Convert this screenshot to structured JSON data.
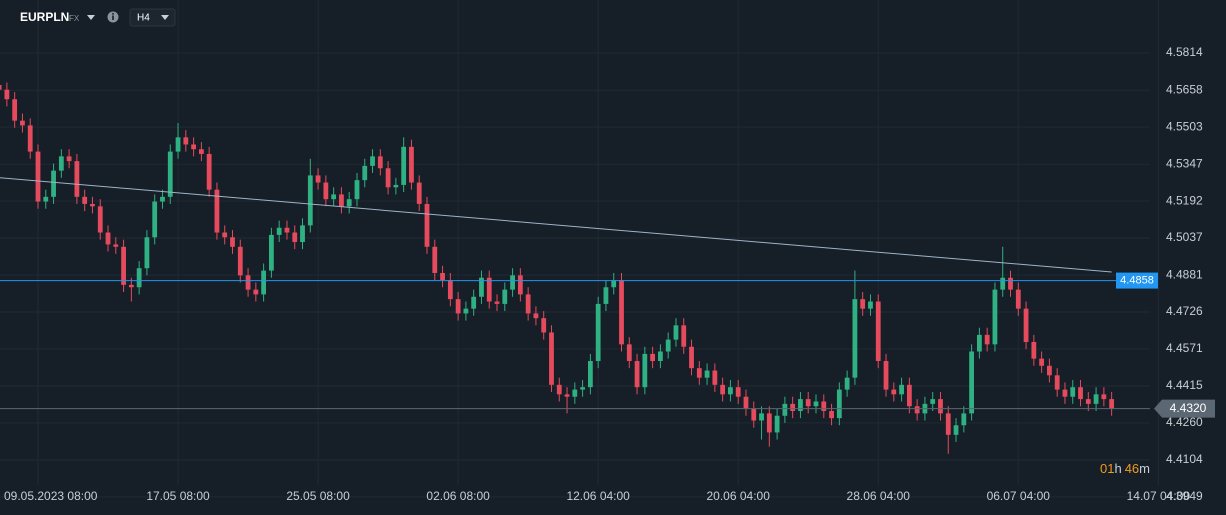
{
  "header": {
    "symbol": "EURPLN",
    "market": "FX",
    "timeframe": "H4"
  },
  "countdown": {
    "hours": "01",
    "hours_unit": "h",
    "minutes": "46",
    "minutes_unit": "m"
  },
  "chart_data": {
    "type": "candlestick",
    "up_color": "#2fb183",
    "down_color": "#e64a5d",
    "grid": true,
    "ylim": [
      4.3873,
      4.6037
    ],
    "yticks": [
      4.5814,
      4.5658,
      4.5503,
      4.5347,
      4.5192,
      4.5037,
      4.4881,
      4.4726,
      4.4571,
      4.4415,
      {
        "value": 4.426,
        "label": "4.4260"
      },
      4.4104,
      4.3949
    ],
    "categories": [
      null,
      null,
      null,
      null,
      null,
      "09.05.2023 08:00",
      null,
      null,
      null,
      null,
      null,
      null,
      null,
      null,
      null,
      null,
      null,
      null,
      null,
      null,
      null,
      null,
      null,
      "17.05 08:00",
      null,
      null,
      null,
      null,
      null,
      null,
      null,
      null,
      null,
      null,
      null,
      null,
      null,
      null,
      null,
      null,
      null,
      "25.05 08:00",
      null,
      null,
      null,
      null,
      null,
      null,
      null,
      null,
      null,
      null,
      null,
      null,
      null,
      null,
      null,
      null,
      null,
      "02.06 08:00",
      null,
      null,
      null,
      null,
      null,
      null,
      null,
      null,
      null,
      null,
      null,
      null,
      null,
      null,
      null,
      null,
      null,
      "12.06 04:00",
      null,
      null,
      null,
      null,
      null,
      null,
      null,
      null,
      null,
      null,
      null,
      null,
      null,
      null,
      null,
      null,
      null,
      "20.06 04:00",
      null,
      null,
      null,
      null,
      null,
      null,
      null,
      null,
      null,
      null,
      null,
      null,
      null,
      null,
      null,
      null,
      null,
      "28.06 04:00",
      null,
      null,
      null,
      null,
      null,
      null,
      null,
      null,
      null,
      null,
      null,
      null,
      null,
      null,
      null,
      null,
      null,
      "06.07 04:00",
      null,
      null,
      null,
      null,
      null,
      null,
      null,
      null,
      null,
      null,
      null,
      null,
      null,
      null,
      null,
      null,
      null,
      "14.07 04:00"
    ],
    "open": [
      4.568,
      4.566,
      4.562,
      4.553,
      4.551,
      4.54,
      4.519,
      4.521,
      4.532,
      4.538,
      4.536,
      4.521,
      4.518,
      4.517,
      4.506,
      4.501,
      4.5,
      4.484,
      4.483,
      4.491,
      4.504,
      4.519,
      4.521,
      4.54,
      4.546,
      4.543,
      4.541,
      4.539,
      4.524,
      4.506,
      4.504,
      4.5,
      4.488,
      4.482,
      4.48,
      4.49,
      4.505,
      4.508,
      4.506,
      4.502,
      4.509,
      4.53,
      4.527,
      4.52,
      4.522,
      4.517,
      4.52,
      4.528,
      4.534,
      4.538,
      4.533,
      4.525,
      4.526,
      4.542,
      4.527,
      4.518,
      4.5,
      4.489,
      4.486,
      4.478,
      4.472,
      4.474,
      4.479,
      4.487,
      4.477,
      4.476,
      4.482,
      4.488,
      4.48,
      4.472,
      4.47,
      4.464,
      4.442,
      4.438,
      4.437,
      4.44,
      4.441,
      4.452,
      4.476,
      4.483,
      4.486,
      4.459,
      4.452,
      4.441,
      4.455,
      4.452,
      4.456,
      4.461,
      4.467,
      4.458,
      4.449,
      4.445,
      4.448,
      4.442,
      4.438,
      4.441,
      4.437,
      4.432,
      4.427,
      4.43,
      4.422,
      4.429,
      4.434,
      4.431,
      4.436,
      4.433,
      4.435,
      4.431,
      4.428,
      4.44,
      4.445,
      4.478,
      4.474,
      4.477,
      4.452,
      4.44,
      4.438,
      4.442,
      4.433,
      4.43,
      4.434,
      4.436,
      4.43,
      4.421,
      4.425,
      4.43,
      4.456,
      4.463,
      4.459,
      4.482,
      4.487,
      4.482,
      4.474,
      4.46,
      4.453,
      4.45,
      4.446,
      4.44,
      4.437,
      4.441,
      4.436,
      4.434,
      4.438,
      4.436,
      null,
      null,
      null,
      null,
      null,
      null
    ],
    "high": [
      4.576,
      4.569,
      4.565,
      4.556,
      4.554,
      4.543,
      4.524,
      4.535,
      4.541,
      4.541,
      4.539,
      4.524,
      4.521,
      4.52,
      4.509,
      4.504,
      4.503,
      4.487,
      4.494,
      4.507,
      4.522,
      4.524,
      4.543,
      4.552,
      4.549,
      4.546,
      4.544,
      4.542,
      4.527,
      4.509,
      4.507,
      4.503,
      4.491,
      4.485,
      4.493,
      4.508,
      4.511,
      4.511,
      4.509,
      4.512,
      4.537,
      4.533,
      4.53,
      4.525,
      4.525,
      4.523,
      4.531,
      4.537,
      4.541,
      4.541,
      4.536,
      4.529,
      4.546,
      4.545,
      4.53,
      4.521,
      4.503,
      4.492,
      4.489,
      4.481,
      4.477,
      4.482,
      4.49,
      4.49,
      4.48,
      4.485,
      4.491,
      4.491,
      4.483,
      4.475,
      4.473,
      4.467,
      4.445,
      4.441,
      4.443,
      4.444,
      4.455,
      4.479,
      4.486,
      4.489,
      4.489,
      4.462,
      4.455,
      4.458,
      4.458,
      4.459,
      4.464,
      4.47,
      4.47,
      4.461,
      4.452,
      4.451,
      4.451,
      4.445,
      4.444,
      4.444,
      4.44,
      4.435,
      4.433,
      4.433,
      4.432,
      4.437,
      4.437,
      4.439,
      4.439,
      4.438,
      4.438,
      4.434,
      4.443,
      4.448,
      4.49,
      4.481,
      4.48,
      4.48,
      4.455,
      4.443,
      4.445,
      4.445,
      4.436,
      4.437,
      4.439,
      4.439,
      4.433,
      4.428,
      4.433,
      4.459,
      4.466,
      4.466,
      4.485,
      4.5,
      4.49,
      4.485,
      4.477,
      4.463,
      4.456,
      4.453,
      4.449,
      4.443,
      4.444,
      4.444,
      4.439,
      4.441,
      4.441,
      4.439,
      null,
      null,
      null,
      null,
      null,
      null
    ],
    "low": [
      4.563,
      4.559,
      4.55,
      4.548,
      4.537,
      4.516,
      4.516,
      4.518,
      4.529,
      4.533,
      4.518,
      4.515,
      4.514,
      4.503,
      4.498,
      4.497,
      4.481,
      4.477,
      4.48,
      4.488,
      4.501,
      4.516,
      4.518,
      4.537,
      4.54,
      4.538,
      4.536,
      4.521,
      4.503,
      4.501,
      4.497,
      4.485,
      4.479,
      4.477,
      4.477,
      4.487,
      4.502,
      4.503,
      4.499,
      4.499,
      4.506,
      4.524,
      4.517,
      4.517,
      4.514,
      4.514,
      4.517,
      4.525,
      4.531,
      4.53,
      4.522,
      4.522,
      4.523,
      4.524,
      4.515,
      4.497,
      4.486,
      4.483,
      4.475,
      4.469,
      4.469,
      4.471,
      4.476,
      4.474,
      4.473,
      4.473,
      4.479,
      4.477,
      4.469,
      4.467,
      4.461,
      4.439,
      4.435,
      4.43,
      4.434,
      4.437,
      4.438,
      4.449,
      4.473,
      4.48,
      4.456,
      4.449,
      4.438,
      4.438,
      4.449,
      4.449,
      4.453,
      4.458,
      4.455,
      4.446,
      4.442,
      4.442,
      4.439,
      4.435,
      4.435,
      4.434,
      4.429,
      4.424,
      4.419,
      4.416,
      4.419,
      4.426,
      4.428,
      4.428,
      4.43,
      4.43,
      4.428,
      4.425,
      4.425,
      4.437,
      4.442,
      4.471,
      4.471,
      4.449,
      4.437,
      4.435,
      4.435,
      4.43,
      4.427,
      4.427,
      4.431,
      4.427,
      4.413,
      4.418,
      4.422,
      4.427,
      4.453,
      4.456,
      4.456,
      4.479,
      4.479,
      4.471,
      4.457,
      4.45,
      4.447,
      4.443,
      4.437,
      4.434,
      4.434,
      4.433,
      4.431,
      4.431,
      4.433,
      4.429,
      null,
      null,
      null,
      null,
      null,
      null
    ],
    "close": [
      4.566,
      4.562,
      4.553,
      4.551,
      4.54,
      4.519,
      4.521,
      4.532,
      4.538,
      4.536,
      4.521,
      4.518,
      4.517,
      4.506,
      4.501,
      4.5,
      4.484,
      4.483,
      4.491,
      4.504,
      4.519,
      4.521,
      4.54,
      4.546,
      4.543,
      4.541,
      4.539,
      4.524,
      4.506,
      4.504,
      4.5,
      4.488,
      4.482,
      4.48,
      4.49,
      4.505,
      4.508,
      4.506,
      4.502,
      4.509,
      4.53,
      4.527,
      4.52,
      4.522,
      4.517,
      4.52,
      4.528,
      4.534,
      4.538,
      4.533,
      4.525,
      4.526,
      4.542,
      4.527,
      4.518,
      4.5,
      4.489,
      4.486,
      4.478,
      4.472,
      4.474,
      4.479,
      4.487,
      4.477,
      4.476,
      4.482,
      4.488,
      4.48,
      4.472,
      4.47,
      4.464,
      4.442,
      4.438,
      4.437,
      4.44,
      4.441,
      4.452,
      4.476,
      4.483,
      4.486,
      4.459,
      4.452,
      4.441,
      4.455,
      4.452,
      4.456,
      4.461,
      4.467,
      4.458,
      4.449,
      4.445,
      4.448,
      4.442,
      4.438,
      4.441,
      4.437,
      4.432,
      4.427,
      4.43,
      4.422,
      4.429,
      4.434,
      4.431,
      4.436,
      4.433,
      4.435,
      4.431,
      4.428,
      4.44,
      4.445,
      4.478,
      4.474,
      4.477,
      4.452,
      4.44,
      4.438,
      4.442,
      4.433,
      4.43,
      4.434,
      4.436,
      4.43,
      4.421,
      4.425,
      4.43,
      4.456,
      4.463,
      4.459,
      4.482,
      4.487,
      4.482,
      4.474,
      4.46,
      4.453,
      4.45,
      4.446,
      4.44,
      4.437,
      4.441,
      4.436,
      4.434,
      4.438,
      4.436,
      4.432,
      null,
      null,
      null,
      null,
      null,
      null
    ],
    "trendline": [
      4.529,
      4.4894
    ],
    "trendline_color": "#9fb4c8",
    "level": 4.4858,
    "level_color": "#2196f3",
    "current_price": {
      "value": 4.432,
      "label": "4.4320"
    },
    "current_color": "#5b6773"
  }
}
